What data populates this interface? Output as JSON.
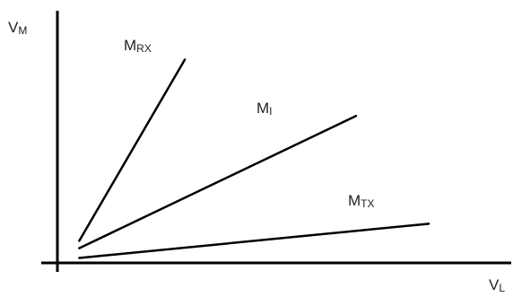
{
  "chart_data": {
    "type": "line",
    "title": "",
    "x_axis": {
      "label_main": "V",
      "label_sub": "L"
    },
    "y_axis": {
      "label_main": "V",
      "label_sub": "M"
    },
    "grid": false,
    "legend": "none",
    "xlim": [
      0,
      10
    ],
    "ylim": [
      0,
      10
    ],
    "series": [
      {
        "name_main": "M",
        "name_sub": "RX",
        "points": [
          [
            0.6,
            0.9
          ],
          [
            3.5,
            8.3
          ]
        ]
      },
      {
        "name_main": "M",
        "name_sub": "I",
        "points": [
          [
            0.6,
            0.6
          ],
          [
            8.2,
            6.0
          ]
        ]
      },
      {
        "name_main": "M",
        "name_sub": "TX",
        "points": [
          [
            0.6,
            0.2
          ],
          [
            10.2,
            1.6
          ]
        ]
      }
    ]
  }
}
